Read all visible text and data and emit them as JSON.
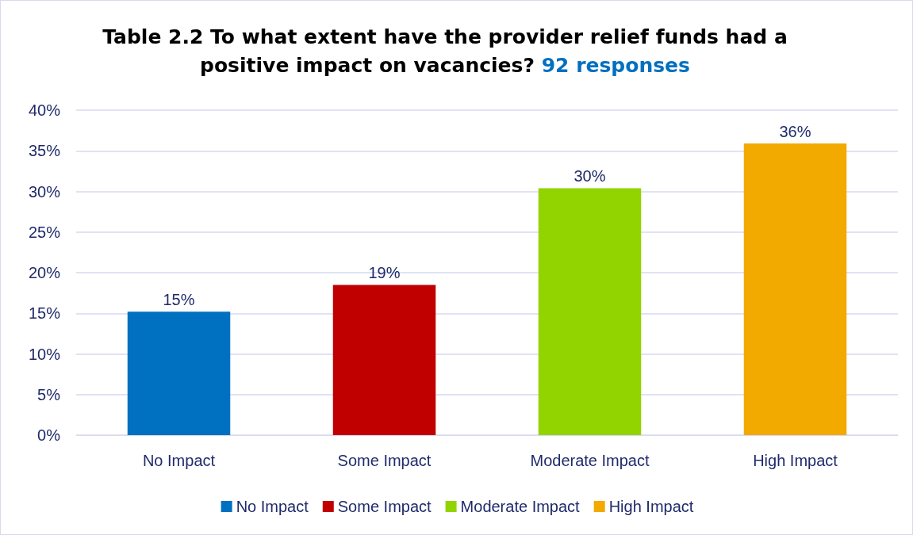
{
  "chart_data": {
    "type": "bar",
    "title": "Table 2.2 To what extent have the provider relief funds had a positive impact on vacancies?",
    "subtitle": "92 responses",
    "categories": [
      "No Impact",
      "Some Impact",
      "Moderate Impact",
      "High Impact"
    ],
    "series": [
      {
        "name": "No Impact",
        "color": "#0070c0",
        "values": [
          15.2,
          null,
          null,
          null
        ],
        "value_labels": [
          "15%",
          null,
          null,
          null
        ]
      },
      {
        "name": "Some Impact",
        "color": "#c00000",
        "values": [
          null,
          18.5,
          null,
          null
        ],
        "value_labels": [
          null,
          "19%",
          null,
          null
        ]
      },
      {
        "name": "Moderate Impact",
        "color": "#92d400",
        "values": [
          null,
          null,
          30.4,
          null
        ],
        "value_labels": [
          null,
          null,
          "30%",
          null
        ]
      },
      {
        "name": "High Impact",
        "color": "#f2a900",
        "values": [
          null,
          null,
          null,
          35.9
        ],
        "value_labels": [
          null,
          null,
          null,
          "36%"
        ]
      }
    ],
    "ylim": [
      0,
      40
    ],
    "yticks": [
      {
        "value": 0,
        "label": "0%"
      },
      {
        "value": 5,
        "label": "5%"
      },
      {
        "value": 10,
        "label": "10%"
      },
      {
        "value": 15,
        "label": "15%"
      },
      {
        "value": 20,
        "label": "20%"
      },
      {
        "value": 25,
        "label": "25%"
      },
      {
        "value": 30,
        "label": "30%"
      },
      {
        "value": 35,
        "label": "35%"
      },
      {
        "value": 40,
        "label": "40%"
      }
    ],
    "grid": "y",
    "legend": "bottom"
  }
}
